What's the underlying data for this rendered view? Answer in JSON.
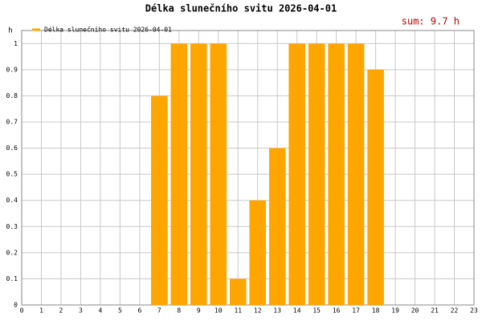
{
  "chart_data": {
    "type": "bar",
    "title": "Délka slunečního svitu 2026-04-01",
    "annotation": "sum: 9.7 h",
    "y_label": "h",
    "series": [
      {
        "name": "Délka slunečního svitu 2026-04-01",
        "color": "#ffa500",
        "x": [
          7,
          8,
          9,
          10,
          11,
          12,
          13,
          14,
          15,
          16,
          17,
          18
        ],
        "values": [
          0.8,
          1,
          1,
          1,
          0.1,
          0.4,
          0.6,
          1,
          1,
          1,
          1,
          0.9
        ]
      }
    ],
    "xlim": [
      0,
      23
    ],
    "xticks": [
      0,
      1,
      2,
      3,
      4,
      5,
      6,
      7,
      8,
      9,
      10,
      11,
      12,
      13,
      14,
      15,
      16,
      17,
      18,
      19,
      20,
      21,
      22,
      23
    ],
    "ylim": [
      0,
      1.05
    ],
    "yticks": [
      0,
      0.1,
      0.2,
      0.3,
      0.4,
      0.5,
      0.6,
      0.7,
      0.8,
      0.9,
      1
    ],
    "grid": true
  }
}
